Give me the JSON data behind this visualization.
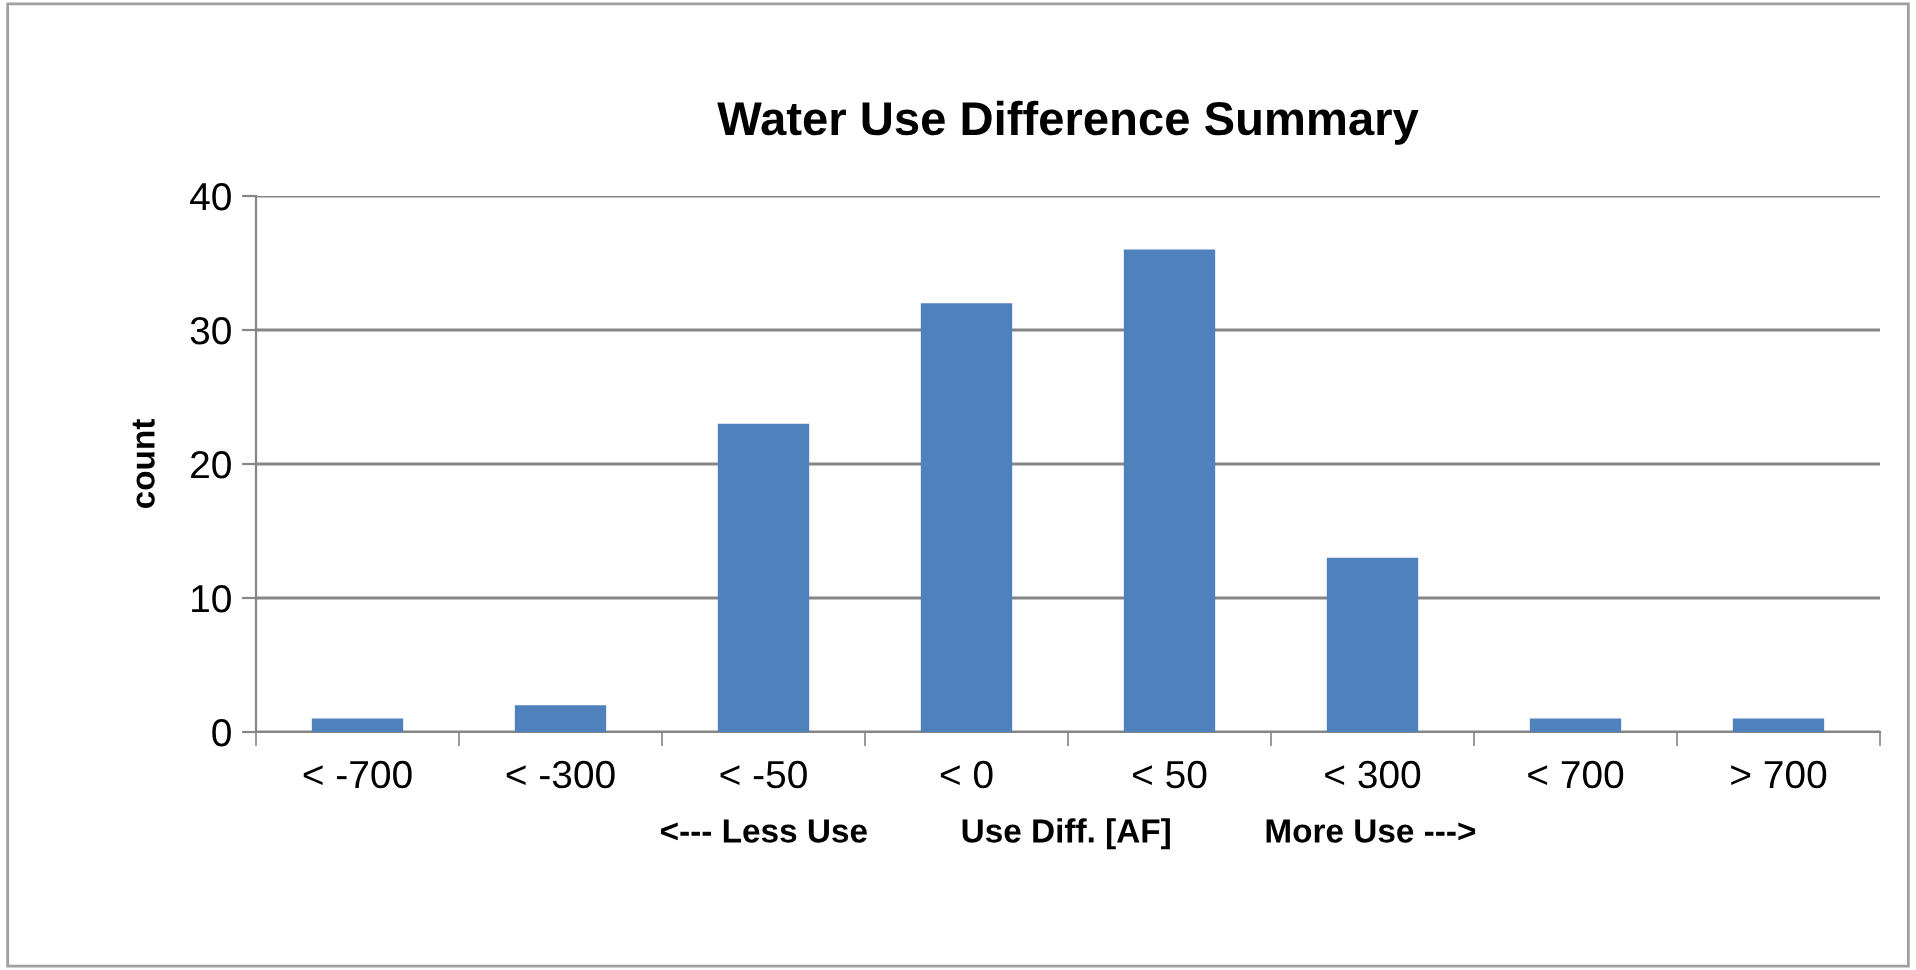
{
  "chart_data": {
    "type": "bar",
    "title": "Water Use Difference Summary",
    "xlabel": "<--- Less Use          Use Diff. [AF]          More Use --->",
    "ylabel": "count",
    "categories": [
      "< -700",
      "< -300",
      "< -50",
      "< 0",
      "< 50",
      "< 300",
      "< 700",
      "> 700"
    ],
    "values": [
      1,
      2,
      23,
      32,
      36,
      13,
      1,
      1
    ],
    "color": "#4f81bd",
    "ylim": [
      0,
      40
    ],
    "yticks": [
      0,
      10,
      20,
      30,
      40
    ],
    "grid": "y",
    "legend": false
  }
}
